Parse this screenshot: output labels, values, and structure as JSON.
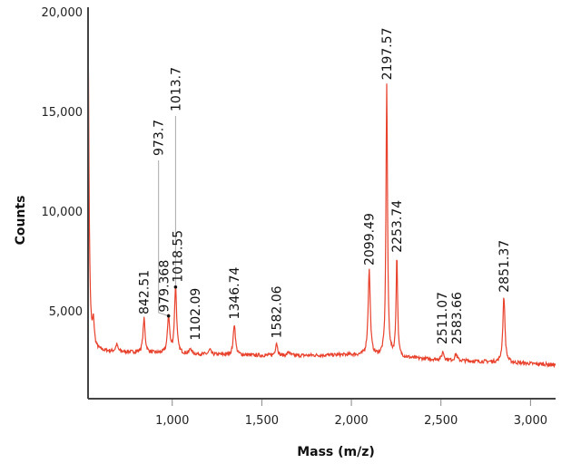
{
  "chart_data": {
    "type": "line",
    "title": "",
    "xlabel": "Mass (m/z)",
    "ylabel": "Counts",
    "xlim": [
      530,
      3140
    ],
    "ylim": [
      600,
      20000
    ],
    "xticks": [
      1000,
      1500,
      2000,
      2500,
      3000
    ],
    "xtick_labels": [
      "1,000",
      "1,500",
      "2,000",
      "2,500",
      "3,000"
    ],
    "yticks": [
      5000,
      10000,
      15000,
      20000
    ],
    "ytick_labels": [
      "5,000",
      "10,000",
      "15,000",
      "20,000"
    ],
    "grid": false,
    "line_color": "#e8412c",
    "baseline": [
      [
        530,
        3000
      ],
      [
        1000,
        2850
      ],
      [
        1600,
        2750
      ],
      [
        2000,
        2800
      ],
      [
        2500,
        2550
      ],
      [
        3140,
        2300
      ]
    ],
    "peaks": [
      {
        "mass": 530,
        "counts": 18900,
        "label": ""
      },
      {
        "mass": 560,
        "counts": 4200,
        "label": ""
      },
      {
        "mass": 690,
        "counts": 3300,
        "label": ""
      },
      {
        "mass": 842.51,
        "counts": 4600,
        "label": "842.51"
      },
      {
        "mass": 979.368,
        "counts": 4750,
        "label": "979.368",
        "leader_label": "973.7"
      },
      {
        "mass": 1018.55,
        "counts": 6200,
        "label": "1018.55",
        "leader_label": "1013.7"
      },
      {
        "mass": 1102.09,
        "counts": 3100,
        "label": "1102.09"
      },
      {
        "mass": 1210,
        "counts": 3050,
        "label": ""
      },
      {
        "mass": 1346.74,
        "counts": 4350,
        "label": "1346.74"
      },
      {
        "mass": 1582.06,
        "counts": 3400,
        "label": "1582.06"
      },
      {
        "mass": 1650,
        "counts": 2950,
        "label": ""
      },
      {
        "mass": 2099.49,
        "counts": 7050,
        "label": "2099.49"
      },
      {
        "mass": 2197.57,
        "counts": 16350,
        "label": "2197.57"
      },
      {
        "mass": 2253.74,
        "counts": 7700,
        "label": "2253.74"
      },
      {
        "mass": 2511.07,
        "counts": 2950,
        "label": "2511.07"
      },
      {
        "mass": 2583.66,
        "counts": 2850,
        "label": "2583.66"
      },
      {
        "mass": 2851.37,
        "counts": 5700,
        "label": "2851.37"
      }
    ]
  }
}
